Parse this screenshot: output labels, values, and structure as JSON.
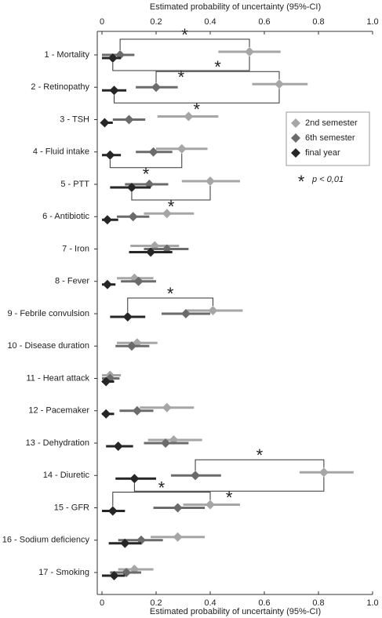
{
  "chart_data": {
    "type": "forest",
    "x_label": "Estimated probability of uncertainty  (95%-CI)",
    "categories": [
      "1 - Mortality",
      "2 - Retinopathy",
      "3 - TSH",
      "4 - Fluid intake",
      "5 - PTT",
      "6 - Antibiotic",
      "7 - Iron",
      "8 - Fever",
      "9 - Febrile convulsion",
      "10 - Disease duration",
      "11 - Heart attack",
      "12 - Pacemaker",
      "13 - Dehydration",
      "14 - Diuretic",
      "15 - GFR",
      "16 - Sodium deficiency",
      "17 - Smoking"
    ],
    "series": [
      {
        "name": "2nd semester",
        "color": "#a6a6a6",
        "values": [
          0.545,
          0.655,
          0.32,
          0.295,
          0.4,
          0.24,
          0.195,
          0.12,
          0.41,
          0.13,
          0.03,
          0.24,
          0.265,
          0.82,
          0.4,
          0.28,
          0.12
        ],
        "lower": [
          0.43,
          0.555,
          0.205,
          0.2,
          0.295,
          0.155,
          0.105,
          0.055,
          0.31,
          0.055,
          0,
          0.14,
          0.17,
          0.73,
          0.3,
          0.18,
          0.06
        ],
        "upper": [
          0.66,
          0.76,
          0.43,
          0.39,
          0.51,
          0.34,
          0.285,
          0.19,
          0.52,
          0.205,
          0.07,
          0.34,
          0.37,
          0.93,
          0.51,
          0.38,
          0.19
        ]
      },
      {
        "name": "6th semester",
        "color": "#6b6b6b",
        "values": [
          0.067,
          0.2,
          0.1,
          0.19,
          0.175,
          0.115,
          0.24,
          0.135,
          0.31,
          0.11,
          0.03,
          0.13,
          0.235,
          0.345,
          0.28,
          0.145,
          0.09
        ],
        "lower": [
          0,
          0.125,
          0.04,
          0.125,
          0.085,
          0.055,
          0.155,
          0.07,
          0.22,
          0.05,
          0,
          0.065,
          0.155,
          0.255,
          0.19,
          0.06,
          0.03
        ],
        "upper": [
          0.12,
          0.28,
          0.16,
          0.26,
          0.245,
          0.175,
          0.32,
          0.2,
          0.4,
          0.175,
          0.065,
          0.19,
          0.32,
          0.44,
          0.38,
          0.225,
          0.145
        ]
      },
      {
        "name": "final year",
        "color": "#262626",
        "values": [
          0.04,
          0.045,
          0.01,
          0.03,
          0.11,
          0.02,
          0.18,
          0.02,
          0.095,
          null,
          0.015,
          0.015,
          0.06,
          0.12,
          0.04,
          0.085,
          0.045
        ],
        "lower": [
          0,
          0,
          0,
          0,
          0.03,
          0,
          0.1,
          0,
          0.03,
          null,
          0,
          0,
          0.015,
          0.05,
          0,
          0.025,
          0
        ],
        "upper": [
          0.07,
          0.09,
          0.04,
          0.07,
          0.18,
          0.06,
          0.26,
          0.05,
          0.16,
          null,
          0.045,
          0.045,
          0.115,
          0.2,
          0.085,
          0.145,
          0.085
        ]
      }
    ],
    "significance_symbol": "*",
    "significance_label": "p < 0,01",
    "significant": [
      {
        "category": "1 - Mortality",
        "between": [
          "6th semester",
          "2nd semester"
        ]
      },
      {
        "category": "1 - Mortality",
        "between": [
          "final year",
          "2nd semester"
        ]
      },
      {
        "category": "2 - Retinopathy",
        "between": [
          "6th semester",
          "2nd semester"
        ]
      },
      {
        "category": "2 - Retinopathy",
        "between": [
          "final year",
          "2nd semester"
        ]
      },
      {
        "category": "4 - Fluid intake",
        "between": [
          "final year",
          "2nd semester"
        ]
      },
      {
        "category": "5 - PTT",
        "between": [
          "final year",
          "2nd semester"
        ]
      },
      {
        "category": "9 - Febrile convulsion",
        "between": [
          "final year",
          "2nd semester"
        ]
      },
      {
        "category": "14 - Diuretic",
        "between": [
          "6th semester",
          "2nd semester"
        ]
      },
      {
        "category": "14 - Diuretic",
        "between": [
          "final year",
          "2nd semester"
        ]
      },
      {
        "category": "15 - GFR",
        "between": [
          "final year",
          "2nd semester"
        ]
      }
    ],
    "xlim": [
      0,
      1
    ],
    "xticks": [
      0,
      0.2,
      0.4,
      0.6,
      0.8,
      {
        "value": 1,
        "label": "1.0"
      }
    ],
    "legend": "upper right"
  }
}
